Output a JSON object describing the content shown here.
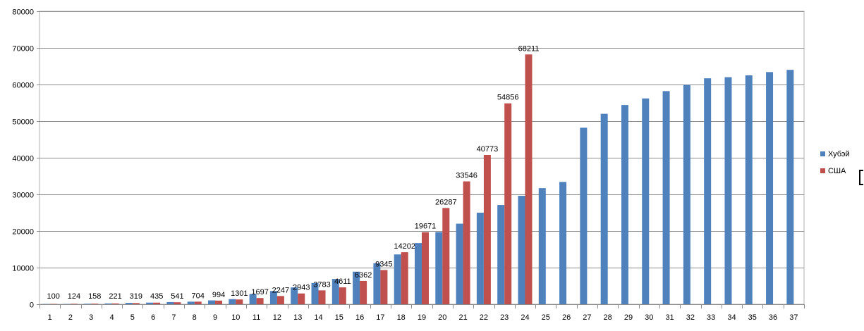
{
  "chart_data": {
    "type": "bar",
    "title": "",
    "xlabel": "",
    "ylabel": "",
    "ylim": [
      0,
      80000
    ],
    "y_ticks": [
      "0",
      "10000",
      "20000",
      "30000",
      "40000",
      "50000",
      "60000",
      "70000",
      "80000"
    ],
    "categories": [
      "1",
      "2",
      "3",
      "4",
      "5",
      "6",
      "7",
      "8",
      "9",
      "10",
      "11",
      "12",
      "13",
      "14",
      "15",
      "16",
      "17",
      "18",
      "19",
      "20",
      "21",
      "22",
      "23",
      "24",
      "25",
      "26",
      "27",
      "28",
      "29",
      "30",
      "31",
      "32",
      "33",
      "34",
      "35",
      "36",
      "37"
    ],
    "grid": true,
    "legend_position": "right",
    "series": [
      {
        "name": "Хубэй",
        "color": "#4f81bd",
        "values": [
          70,
          70,
          140,
          220,
          370,
          440,
          590,
          700,
          1050,
          1400,
          2800,
          3600,
          4600,
          5800,
          6900,
          8900,
          11200,
          13600,
          16700,
          19700,
          22000,
          25000,
          27100,
          29600,
          31700,
          33400,
          48200,
          52000,
          54400,
          56200,
          58200,
          59900,
          61700,
          62000,
          62500,
          63400,
          64000
        ]
      },
      {
        "name": "США",
        "color": "#c0504d",
        "values": [
          100,
          124,
          158,
          221,
          319,
          435,
          541,
          704,
          994,
          1301,
          1697,
          2247,
          2943,
          3783,
          4611,
          6362,
          9345,
          14202,
          19671,
          26287,
          33546,
          40773,
          54856,
          68211,
          null,
          null,
          null,
          null,
          null,
          null,
          null,
          null,
          null,
          null,
          null,
          null,
          null
        ],
        "data_labels": [
          "100",
          "124",
          "158",
          "221",
          "319",
          "435",
          "541",
          "704",
          "994",
          "1301",
          "1697",
          "2247",
          "2943",
          "3783",
          "4611",
          "6362",
          "9345",
          "14202",
          "19671",
          "26287",
          "33546",
          "40773",
          "54856",
          "68211"
        ]
      }
    ]
  }
}
